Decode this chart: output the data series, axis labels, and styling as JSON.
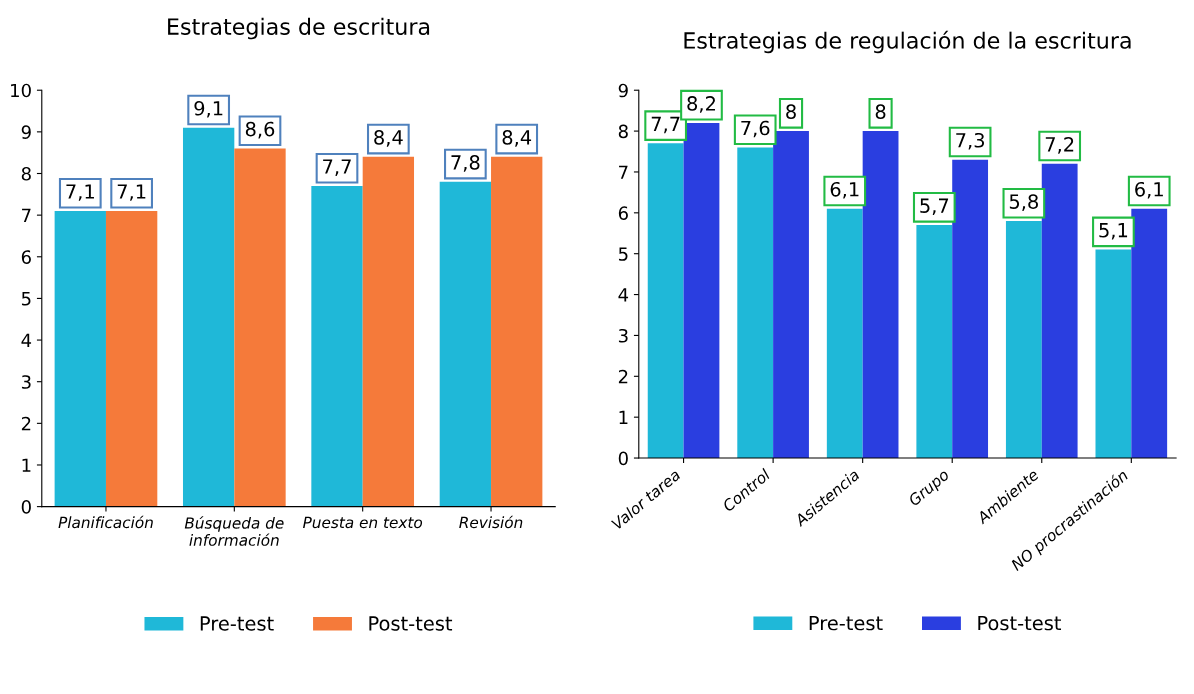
{
  "chart_data": [
    {
      "type": "bar",
      "title": "Estrategias de escritura",
      "categories": [
        "Planificación",
        "Búsqueda de\ninformación",
        "Puesta en texto",
        "Revisión"
      ],
      "series": [
        {
          "name": "Pre-test",
          "color": "#1fb8d8",
          "values": [
            7.1,
            9.1,
            7.7,
            7.8
          ],
          "value_labels": [
            "7,1",
            "9,1",
            "7,7",
            "7,8"
          ]
        },
        {
          "name": "Post-test",
          "color": "#f57a3a",
          "values": [
            7.1,
            8.6,
            8.4,
            8.4
          ],
          "value_labels": [
            "7,1",
            "8,6",
            "8,4",
            "8,4"
          ]
        }
      ],
      "ylim": [
        0,
        10
      ],
      "yticks": [
        0,
        1,
        2,
        3,
        4,
        5,
        6,
        7,
        8,
        9,
        10
      ],
      "grid": false,
      "legend": "bottom"
    },
    {
      "type": "bar",
      "title": "Estrategias de regulación de la escritura",
      "categories": [
        "Valor tarea",
        "Control",
        "Asistencia",
        "Grupo",
        "Ambiente",
        "NO procrastinación"
      ],
      "series": [
        {
          "name": "Pre-test",
          "color": "#1fb8d8",
          "values": [
            7.7,
            7.6,
            6.1,
            5.7,
            5.8,
            5.1
          ],
          "value_labels": [
            "7,7",
            "7,6",
            "6,1",
            "5,7",
            "5,8",
            "5,1"
          ]
        },
        {
          "name": "Post-test",
          "color": "#2a3ee0",
          "values": [
            8.2,
            8,
            8,
            7.3,
            7.2,
            6.1
          ],
          "value_labels": [
            "8,2",
            "8",
            "8",
            "7,3",
            "7,2",
            "6,1"
          ]
        }
      ],
      "ylim": [
        0,
        9
      ],
      "yticks": [
        0,
        1,
        2,
        3,
        4,
        5,
        6,
        7,
        8,
        9
      ],
      "grid": false,
      "legend": "bottom"
    }
  ]
}
